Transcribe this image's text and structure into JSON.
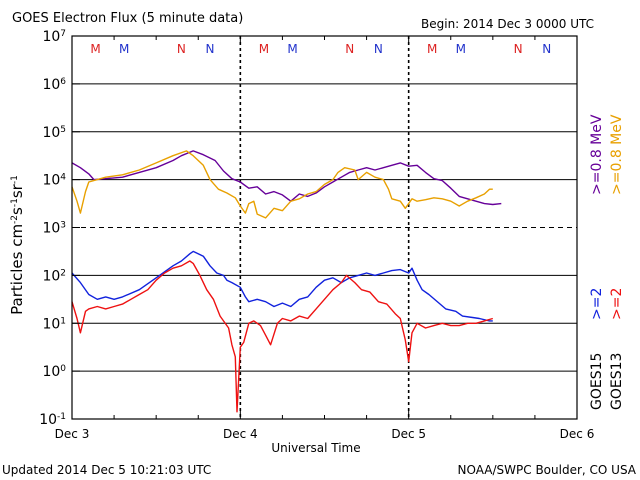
{
  "chart_data": {
    "type": "line",
    "title": "GOES Electron Flux (5 minute data)",
    "begin_label": "Begin: 2014 Dec 3 0000 UTC",
    "xlabel": "Universal Time",
    "ylabel_parts": {
      "a": "Particles cm",
      "b": "-2",
      "c": "s",
      "d": "-1",
      "e": "sr",
      "f": "-1"
    },
    "x_ticks": [
      {
        "day": 0,
        "label": "Dec 3"
      },
      {
        "day": 1,
        "label": "Dec 4"
      },
      {
        "day": 2,
        "label": "Dec 5"
      },
      {
        "day": 3,
        "label": "Dec 6"
      }
    ],
    "y_range": [
      -1,
      7
    ],
    "y_scale": "log",
    "y_ticks": [
      {
        "exp": -1,
        "base": "10",
        "sup": "-1"
      },
      {
        "exp": 0,
        "base": "10",
        "sup": "0"
      },
      {
        "exp": 1,
        "base": "10",
        "sup": "1"
      },
      {
        "exp": 2,
        "base": "10",
        "sup": "2"
      },
      {
        "exp": 3,
        "base": "10",
        "sup": "3"
      },
      {
        "exp": 4,
        "base": "10",
        "sup": "4"
      },
      {
        "exp": 5,
        "base": "10",
        "sup": "5"
      },
      {
        "exp": 6,
        "base": "10",
        "sup": "6"
      },
      {
        "exp": 7,
        "base": "10",
        "sup": "7"
      }
    ],
    "threshold_exp": 3,
    "day_dividers": [
      1,
      2
    ],
    "mn_markers": [
      {
        "day": 0.14,
        "label": "M",
        "color": "#dd2222"
      },
      {
        "day": 0.31,
        "label": "M",
        "color": "#2233cc"
      },
      {
        "day": 0.65,
        "label": "N",
        "color": "#dd2222"
      },
      {
        "day": 0.82,
        "label": "N",
        "color": "#2233cc"
      },
      {
        "day": 1.14,
        "label": "M",
        "color": "#dd2222"
      },
      {
        "day": 1.31,
        "label": "M",
        "color": "#2233cc"
      },
      {
        "day": 1.65,
        "label": "N",
        "color": "#dd2222"
      },
      {
        "day": 1.82,
        "label": "N",
        "color": "#2233cc"
      },
      {
        "day": 2.14,
        "label": "M",
        "color": "#dd2222"
      },
      {
        "day": 2.31,
        "label": "M",
        "color": "#2233cc"
      },
      {
        "day": 2.65,
        "label": "N",
        "color": "#dd2222"
      },
      {
        "day": 2.82,
        "label": "N",
        "color": "#2233cc"
      }
    ],
    "right_labels": [
      {
        "text": ">=0.8 MeV",
        "color": "#660099",
        "column": 0,
        "row": 0
      },
      {
        "text": ">=0.8 MeV",
        "color": "#e8a000",
        "column": 1,
        "row": 0
      },
      {
        "text": ">=2",
        "color": "#1122dd",
        "column": 0,
        "row": 1
      },
      {
        "text": ">=2",
        "color": "#ee1111",
        "column": 1,
        "row": 1
      },
      {
        "text": "GOES15",
        "color": "#000000",
        "column": 0,
        "row": 2
      },
      {
        "text": "GOES13",
        "color": "#000000",
        "column": 1,
        "row": 2
      }
    ],
    "series": [
      {
        "color": "#660099",
        "points": [
          [
            0,
            4.35
          ],
          [
            0.05,
            4.25
          ],
          [
            0.1,
            4.12
          ],
          [
            0.13,
            4.0
          ],
          [
            0.2,
            4.02
          ],
          [
            0.3,
            4.05
          ],
          [
            0.4,
            4.15
          ],
          [
            0.5,
            4.25
          ],
          [
            0.6,
            4.4
          ],
          [
            0.65,
            4.5
          ],
          [
            0.72,
            4.6
          ],
          [
            0.78,
            4.52
          ],
          [
            0.85,
            4.4
          ],
          [
            0.9,
            4.18
          ],
          [
            0.95,
            4.02
          ],
          [
            1.0,
            3.95
          ],
          [
            1.05,
            3.82
          ],
          [
            1.1,
            3.85
          ],
          [
            1.15,
            3.7
          ],
          [
            1.2,
            3.75
          ],
          [
            1.25,
            3.68
          ],
          [
            1.3,
            3.55
          ],
          [
            1.35,
            3.7
          ],
          [
            1.4,
            3.65
          ],
          [
            1.45,
            3.72
          ],
          [
            1.5,
            3.85
          ],
          [
            1.55,
            3.95
          ],
          [
            1.6,
            4.05
          ],
          [
            1.65,
            4.15
          ],
          [
            1.7,
            4.2
          ],
          [
            1.75,
            4.25
          ],
          [
            1.8,
            4.2
          ],
          [
            1.85,
            4.25
          ],
          [
            1.9,
            4.3
          ],
          [
            1.95,
            4.35
          ],
          [
            2.0,
            4.28
          ],
          [
            2.05,
            4.3
          ],
          [
            2.1,
            4.15
          ],
          [
            2.15,
            4.02
          ],
          [
            2.2,
            3.98
          ],
          [
            2.25,
            3.82
          ],
          [
            2.3,
            3.65
          ],
          [
            2.35,
            3.6
          ],
          [
            2.4,
            3.55
          ],
          [
            2.45,
            3.5
          ],
          [
            2.5,
            3.48
          ],
          [
            2.55,
            3.5
          ]
        ]
      },
      {
        "color": "#e8a000",
        "points": [
          [
            0,
            3.85
          ],
          [
            0.03,
            3.55
          ],
          [
            0.05,
            3.3
          ],
          [
            0.08,
            3.75
          ],
          [
            0.1,
            3.95
          ],
          [
            0.15,
            4.0
          ],
          [
            0.2,
            4.05
          ],
          [
            0.3,
            4.1
          ],
          [
            0.4,
            4.2
          ],
          [
            0.5,
            4.35
          ],
          [
            0.6,
            4.5
          ],
          [
            0.68,
            4.6
          ],
          [
            0.72,
            4.5
          ],
          [
            0.78,
            4.3
          ],
          [
            0.82,
            4.0
          ],
          [
            0.87,
            3.8
          ],
          [
            0.92,
            3.72
          ],
          [
            0.97,
            3.62
          ],
          [
            1.0,
            3.45
          ],
          [
            1.03,
            3.3
          ],
          [
            1.05,
            3.5
          ],
          [
            1.08,
            3.55
          ],
          [
            1.1,
            3.28
          ],
          [
            1.15,
            3.2
          ],
          [
            1.2,
            3.4
          ],
          [
            1.25,
            3.35
          ],
          [
            1.3,
            3.55
          ],
          [
            1.35,
            3.6
          ],
          [
            1.4,
            3.7
          ],
          [
            1.45,
            3.75
          ],
          [
            1.5,
            3.9
          ],
          [
            1.55,
            4.0
          ],
          [
            1.58,
            4.15
          ],
          [
            1.62,
            4.25
          ],
          [
            1.68,
            4.2
          ],
          [
            1.7,
            4.0
          ],
          [
            1.75,
            4.15
          ],
          [
            1.8,
            4.05
          ],
          [
            1.85,
            4.0
          ],
          [
            1.88,
            3.8
          ],
          [
            1.9,
            3.6
          ],
          [
            1.95,
            3.55
          ],
          [
            1.98,
            3.4
          ],
          [
            2.02,
            3.6
          ],
          [
            2.05,
            3.55
          ],
          [
            2.1,
            3.58
          ],
          [
            2.15,
            3.62
          ],
          [
            2.2,
            3.6
          ],
          [
            2.25,
            3.55
          ],
          [
            2.3,
            3.45
          ],
          [
            2.35,
            3.55
          ],
          [
            2.4,
            3.62
          ],
          [
            2.45,
            3.7
          ],
          [
            2.48,
            3.8
          ],
          [
            2.5,
            3.8
          ]
        ]
      },
      {
        "color": "#1122dd",
        "points": [
          [
            0,
            2.05
          ],
          [
            0.05,
            1.85
          ],
          [
            0.1,
            1.6
          ],
          [
            0.15,
            1.5
          ],
          [
            0.2,
            1.55
          ],
          [
            0.25,
            1.5
          ],
          [
            0.3,
            1.55
          ],
          [
            0.4,
            1.7
          ],
          [
            0.5,
            1.95
          ],
          [
            0.6,
            2.2
          ],
          [
            0.65,
            2.3
          ],
          [
            0.7,
            2.45
          ],
          [
            0.72,
            2.5
          ],
          [
            0.78,
            2.4
          ],
          [
            0.82,
            2.2
          ],
          [
            0.86,
            2.05
          ],
          [
            0.9,
            2.0
          ],
          [
            0.92,
            1.9
          ],
          [
            0.95,
            1.85
          ],
          [
            1.0,
            1.75
          ],
          [
            1.03,
            1.55
          ],
          [
            1.05,
            1.45
          ],
          [
            1.1,
            1.5
          ],
          [
            1.15,
            1.45
          ],
          [
            1.2,
            1.35
          ],
          [
            1.25,
            1.42
          ],
          [
            1.3,
            1.35
          ],
          [
            1.35,
            1.5
          ],
          [
            1.4,
            1.55
          ],
          [
            1.45,
            1.75
          ],
          [
            1.5,
            1.9
          ],
          [
            1.55,
            1.95
          ],
          [
            1.6,
            1.85
          ],
          [
            1.65,
            1.95
          ],
          [
            1.7,
            2.0
          ],
          [
            1.75,
            2.05
          ],
          [
            1.8,
            2.0
          ],
          [
            1.85,
            2.05
          ],
          [
            1.9,
            2.1
          ],
          [
            1.95,
            2.12
          ],
          [
            2.0,
            2.05
          ],
          [
            2.02,
            2.15
          ],
          [
            2.05,
            1.9
          ],
          [
            2.08,
            1.7
          ],
          [
            2.12,
            1.6
          ],
          [
            2.18,
            1.42
          ],
          [
            2.22,
            1.3
          ],
          [
            2.28,
            1.25
          ],
          [
            2.32,
            1.15
          ],
          [
            2.38,
            1.12
          ],
          [
            2.42,
            1.1
          ],
          [
            2.48,
            1.05
          ],
          [
            2.5,
            1.05
          ]
        ]
      },
      {
        "color": "#ee1111",
        "points": [
          [
            0,
            1.45
          ],
          [
            0.03,
            1.1
          ],
          [
            0.05,
            0.8
          ],
          [
            0.08,
            1.25
          ],
          [
            0.1,
            1.3
          ],
          [
            0.15,
            1.35
          ],
          [
            0.2,
            1.3
          ],
          [
            0.25,
            1.35
          ],
          [
            0.3,
            1.4
          ],
          [
            0.35,
            1.5
          ],
          [
            0.4,
            1.6
          ],
          [
            0.45,
            1.7
          ],
          [
            0.5,
            1.9
          ],
          [
            0.55,
            2.05
          ],
          [
            0.6,
            2.15
          ],
          [
            0.65,
            2.2
          ],
          [
            0.7,
            2.3
          ],
          [
            0.72,
            2.25
          ],
          [
            0.76,
            2.0
          ],
          [
            0.8,
            1.7
          ],
          [
            0.84,
            1.5
          ],
          [
            0.88,
            1.15
          ],
          [
            0.9,
            1.05
          ],
          [
            0.93,
            0.9
          ],
          [
            0.95,
            0.55
          ],
          [
            0.97,
            0.3
          ],
          [
            0.98,
            -0.85
          ],
          [
            1.0,
            0.5
          ],
          [
            1.02,
            0.6
          ],
          [
            1.05,
            1.0
          ],
          [
            1.08,
            1.05
          ],
          [
            1.12,
            0.95
          ],
          [
            1.15,
            0.75
          ],
          [
            1.18,
            0.55
          ],
          [
            1.22,
            1.0
          ],
          [
            1.25,
            1.1
          ],
          [
            1.3,
            1.05
          ],
          [
            1.35,
            1.15
          ],
          [
            1.4,
            1.1
          ],
          [
            1.45,
            1.3
          ],
          [
            1.5,
            1.5
          ],
          [
            1.55,
            1.7
          ],
          [
            1.6,
            1.85
          ],
          [
            1.63,
            2.0
          ],
          [
            1.68,
            1.85
          ],
          [
            1.72,
            1.7
          ],
          [
            1.77,
            1.65
          ],
          [
            1.82,
            1.45
          ],
          [
            1.87,
            1.4
          ],
          [
            1.92,
            1.2
          ],
          [
            1.95,
            1.1
          ],
          [
            1.98,
            0.65
          ],
          [
            2.0,
            0.2
          ],
          [
            2.02,
            0.8
          ],
          [
            2.05,
            1.0
          ],
          [
            2.1,
            0.9
          ],
          [
            2.15,
            0.95
          ],
          [
            2.2,
            1.0
          ],
          [
            2.25,
            0.95
          ],
          [
            2.3,
            0.95
          ],
          [
            2.35,
            1.0
          ],
          [
            2.4,
            1.0
          ],
          [
            2.45,
            1.05
          ],
          [
            2.5,
            1.1
          ]
        ]
      }
    ]
  },
  "footer": {
    "updated": "Updated 2014 Dec  5 10:21:03 UTC",
    "credit": "NOAA/SWPC Boulder, CO USA"
  }
}
